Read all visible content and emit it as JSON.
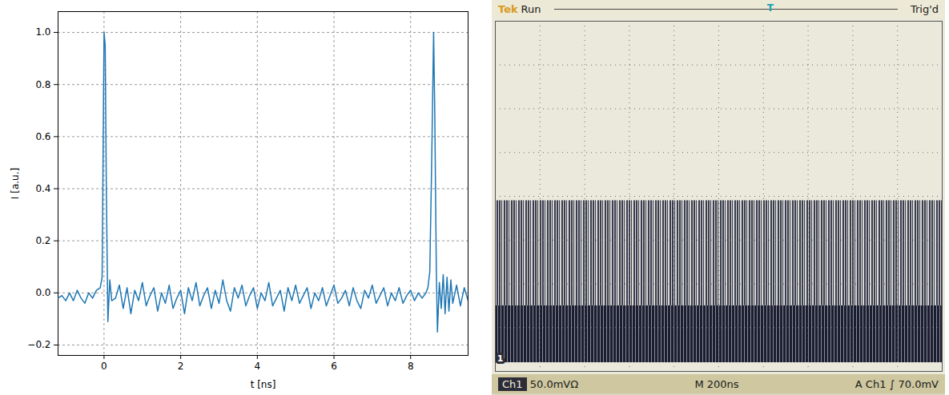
{
  "chart_data": [
    {
      "type": "line",
      "x_label": "t [ns]",
      "y_label": "I [a.u.]",
      "color": "#1f77b4",
      "grid": true,
      "xlim": [
        -1.2,
        9.5
      ],
      "ylim": [
        -0.24,
        1.08
      ],
      "xticks": [
        0,
        2,
        4,
        6,
        8
      ],
      "yticks": [
        {
          "value": -0.2,
          "label": "−0.2"
        },
        {
          "value": 0,
          "label": "0.0"
        },
        {
          "value": 0.2,
          "label": "0.2"
        },
        {
          "value": 0.4,
          "label": "0.4"
        },
        {
          "value": 0.6,
          "label": "0.6"
        },
        {
          "value": 0.8,
          "label": "0.8"
        },
        {
          "value": 1.0,
          "label": "1.0"
        }
      ],
      "x": [
        -1.2,
        -1.1,
        -1.0,
        -0.9,
        -0.8,
        -0.7,
        -0.6,
        -0.5,
        -0.4,
        -0.3,
        -0.2,
        -0.1,
        -0.05,
        0,
        0.03,
        0.06,
        0.1,
        0.15,
        0.2,
        0.3,
        0.4,
        0.5,
        0.6,
        0.7,
        0.8,
        0.9,
        1.0,
        1.1,
        1.2,
        1.3,
        1.4,
        1.5,
        1.6,
        1.7,
        1.8,
        1.9,
        2.0,
        2.1,
        2.2,
        2.3,
        2.4,
        2.5,
        2.6,
        2.7,
        2.8,
        2.9,
        3.0,
        3.1,
        3.2,
        3.3,
        3.4,
        3.5,
        3.6,
        3.7,
        3.8,
        3.9,
        4.0,
        4.1,
        4.2,
        4.3,
        4.4,
        4.5,
        4.6,
        4.7,
        4.8,
        4.9,
        5.0,
        5.1,
        5.2,
        5.3,
        5.4,
        5.5,
        5.6,
        5.7,
        5.8,
        5.9,
        6.0,
        6.1,
        6.2,
        6.3,
        6.4,
        6.5,
        6.6,
        6.7,
        6.8,
        6.9,
        7.0,
        7.1,
        7.2,
        7.3,
        7.4,
        7.5,
        7.6,
        7.7,
        7.8,
        7.9,
        8.0,
        8.1,
        8.2,
        8.3,
        8.4,
        8.45,
        8.5,
        8.55,
        8.6,
        8.63,
        8.67,
        8.7,
        8.75,
        8.8,
        8.85,
        8.9,
        8.95,
        9.0,
        9.05,
        9.1,
        9.2,
        9.3,
        9.4,
        9.5
      ],
      "values": [
        -0.02,
        -0.01,
        -0.03,
        0.0,
        -0.03,
        0.01,
        -0.02,
        -0.04,
        0.0,
        -0.02,
        0.01,
        0.02,
        0.06,
        1.0,
        0.95,
        0.4,
        -0.11,
        0.05,
        -0.03,
        -0.02,
        0.03,
        -0.06,
        0.02,
        -0.08,
        0.01,
        -0.03,
        0.04,
        -0.05,
        -0.01,
        0.02,
        -0.07,
        0.0,
        -0.04,
        0.03,
        -0.06,
        -0.02,
        0.01,
        -0.08,
        0.02,
        -0.03,
        0.04,
        -0.05,
        -0.01,
        0.02,
        -0.06,
        0.01,
        -0.04,
        0.05,
        -0.03,
        -0.07,
        0.02,
        -0.02,
        0.03,
        -0.05,
        -0.01,
        0.02,
        -0.06,
        0.0,
        -0.03,
        0.04,
        -0.05,
        -0.02,
        0.01,
        -0.07,
        0.02,
        -0.03,
        0.03,
        -0.04,
        -0.01,
        0.02,
        -0.06,
        0.0,
        -0.03,
        0.02,
        -0.05,
        -0.01,
        0.03,
        -0.04,
        -0.02,
        0.01,
        -0.05,
        0.02,
        -0.03,
        -0.06,
        0.01,
        -0.02,
        0.03,
        -0.04,
        -0.01,
        0.02,
        -0.05,
        0.0,
        -0.03,
        0.02,
        -0.04,
        -0.01,
        0.01,
        -0.03,
        0.0,
        -0.02,
        0.0,
        0.02,
        0.08,
        0.5,
        1.0,
        0.7,
        0.1,
        -0.15,
        0.04,
        -0.06,
        0.07,
        -0.08,
        0.06,
        -0.07,
        0.05,
        -0.04,
        0.03,
        -0.05,
        0.02,
        -0.03
      ]
    },
    {
      "type": "scope",
      "brand": "Tek",
      "status": "Run",
      "trigger_marker": "T",
      "trigger_state": "Trig'd",
      "channel": "Ch1",
      "volts_per_div": "50.0mVΩ",
      "timebase": "M 200ns",
      "trigger": "A Ch1 ∫ 70.0mV",
      "ground_label": "1",
      "ground": 0,
      "tick_labels": false,
      "grid": true,
      "xlim": [
        0,
        2000
      ],
      "ylim": [
        -15,
        385
      ],
      "xticks": [
        0,
        200,
        400,
        600,
        800,
        1000,
        1200,
        1400,
        1600,
        1800,
        2000
      ],
      "yticks": [
        -15,
        35,
        85,
        135,
        185,
        235,
        285,
        335,
        385
      ],
      "bands": [
        {
          "range": [
            60,
            180
          ],
          "color": "#3a3d52"
        },
        {
          "range": [
            -5,
            60
          ],
          "color": "#1b1e30"
        }
      ]
    }
  ]
}
